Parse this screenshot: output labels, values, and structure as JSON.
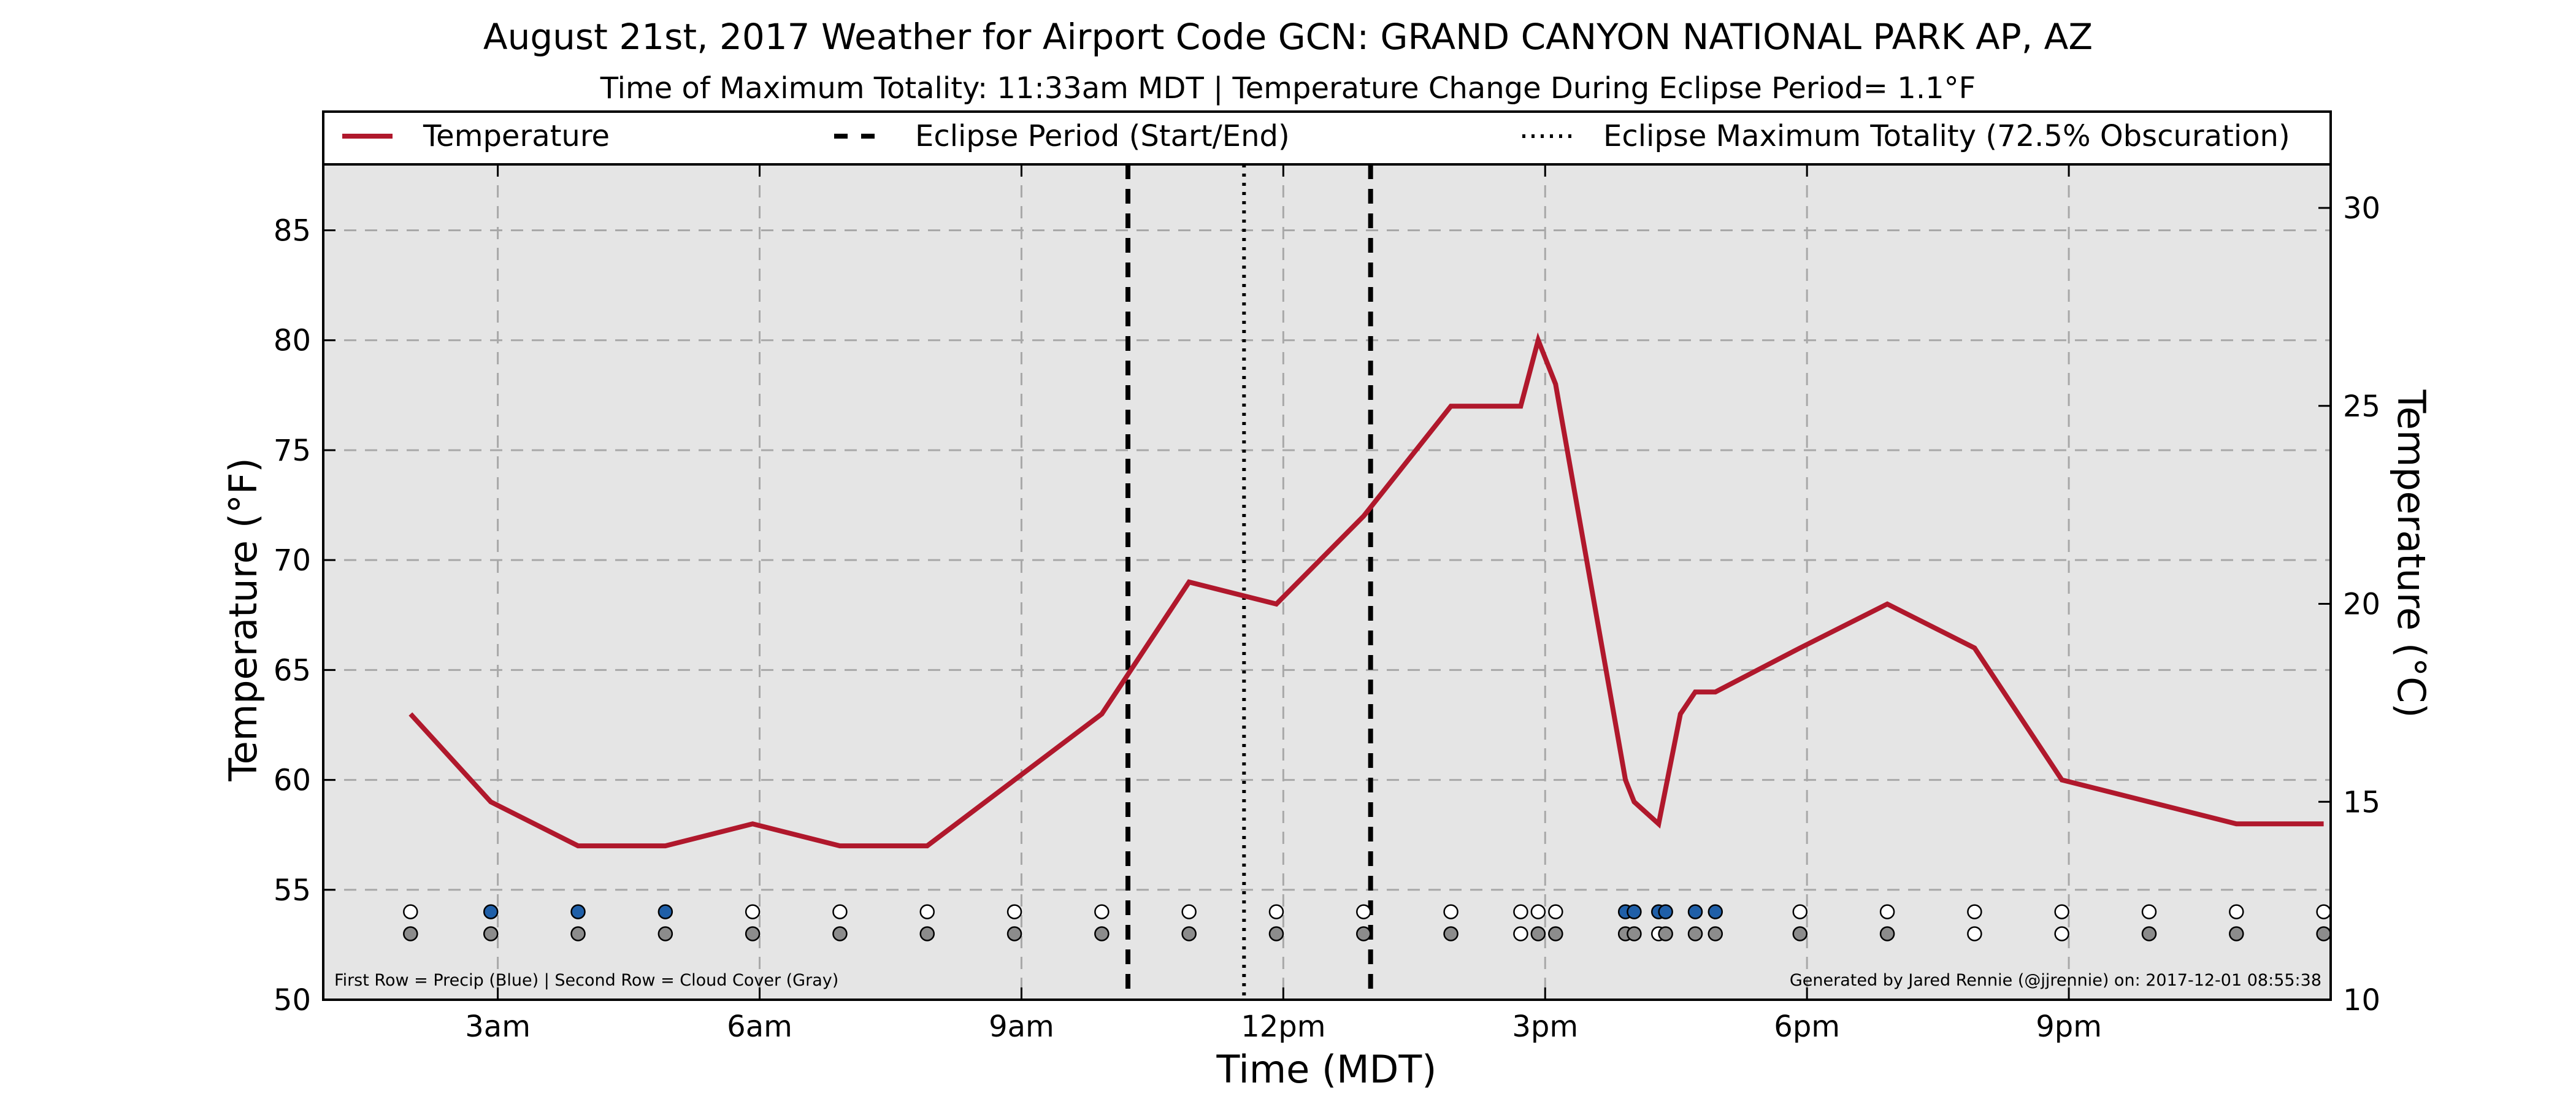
{
  "chart_data": {
    "type": "line",
    "title": "August 21st, 2017 Weather for Airport Code GCN: GRAND CANYON NATIONAL PARK AP, AZ",
    "subtitle": "Time of Maximum Totality: 11:33am MDT | Temperature Change During Eclipse Period= 1.1°F",
    "xlabel": "Time (MDT)",
    "ylabel": "Temperature (°F)",
    "ylabel_right": "Temperature (°C)",
    "xlim": [
      1.0,
      24.0
    ],
    "ylim": [
      50,
      88
    ],
    "ylim_right_c": [
      10,
      31.1
    ],
    "x_ticks": [
      {
        "x": 3,
        "label": "3am"
      },
      {
        "x": 6,
        "label": "6am"
      },
      {
        "x": 9,
        "label": "9am"
      },
      {
        "x": 12,
        "label": "12pm"
      },
      {
        "x": 15,
        "label": "3pm"
      },
      {
        "x": 18,
        "label": "6pm"
      },
      {
        "x": 21,
        "label": "9pm"
      }
    ],
    "y_ticks": [
      50,
      55,
      60,
      65,
      70,
      75,
      80,
      85
    ],
    "y_ticks_right": [
      10,
      15,
      20,
      25,
      30
    ],
    "grid": true,
    "legend": {
      "placement": "top",
      "entries": [
        {
          "label": "Temperature",
          "style": "solid",
          "color": "#b0182c"
        },
        {
          "label": "Eclipse Period (Start/End)",
          "style": "dashed",
          "color": "#000000"
        },
        {
          "label": "Eclipse Maximum Totality (72.5% Obscuration)",
          "style": "dotted",
          "color": "#000000"
        }
      ]
    },
    "series": [
      {
        "name": "Temperature",
        "color": "#b0182c",
        "x": [
          2.0,
          2.92,
          3.92,
          4.92,
          5.92,
          6.92,
          7.92,
          8.92,
          9.92,
          10.92,
          11.92,
          12.92,
          13.92,
          14.72,
          14.92,
          15.12,
          15.92,
          16.02,
          16.3,
          16.55,
          16.72,
          16.95,
          17.92,
          18.92,
          19.92,
          20.92,
          21.92,
          22.92,
          23.92
        ],
        "y": [
          63,
          59,
          57,
          57,
          58,
          57,
          57,
          60,
          63,
          69,
          68,
          72,
          77,
          77,
          80,
          78,
          60,
          59,
          58,
          63,
          64,
          64,
          66,
          68,
          66,
          60,
          59,
          58,
          58
        ]
      }
    ],
    "eclipse_lines": [
      {
        "x": 10.22,
        "type": "start",
        "style": "dashed"
      },
      {
        "x": 11.55,
        "type": "max",
        "style": "dotted"
      },
      {
        "x": 13.0,
        "type": "end",
        "style": "dashed"
      }
    ],
    "observation_rows": {
      "precip_row_y": 54,
      "cloud_row_y": 53,
      "precip_color": "#1f5fa8",
      "cloud_color": "#8c8c8c",
      "empty_color": "#ffffff",
      "points": [
        {
          "x": 2.0,
          "precip": false,
          "cloud": true
        },
        {
          "x": 2.92,
          "precip": true,
          "cloud": true
        },
        {
          "x": 3.92,
          "precip": true,
          "cloud": true
        },
        {
          "x": 4.92,
          "precip": true,
          "cloud": true
        },
        {
          "x": 5.92,
          "precip": false,
          "cloud": true
        },
        {
          "x": 6.92,
          "precip": false,
          "cloud": true
        },
        {
          "x": 7.92,
          "precip": false,
          "cloud": true
        },
        {
          "x": 8.92,
          "precip": false,
          "cloud": true
        },
        {
          "x": 9.92,
          "precip": false,
          "cloud": true
        },
        {
          "x": 10.92,
          "precip": false,
          "cloud": true
        },
        {
          "x": 11.92,
          "precip": false,
          "cloud": true
        },
        {
          "x": 12.92,
          "precip": false,
          "cloud": true
        },
        {
          "x": 13.92,
          "precip": false,
          "cloud": true
        },
        {
          "x": 14.72,
          "precip": false,
          "cloud": false
        },
        {
          "x": 14.92,
          "precip": false,
          "cloud": true
        },
        {
          "x": 15.12,
          "precip": false,
          "cloud": true
        },
        {
          "x": 15.92,
          "precip": true,
          "cloud": true
        },
        {
          "x": 16.02,
          "precip": true,
          "cloud": true
        },
        {
          "x": 16.3,
          "precip": true,
          "cloud": false
        },
        {
          "x": 16.38,
          "precip": true,
          "cloud": true
        },
        {
          "x": 16.72,
          "precip": true,
          "cloud": true
        },
        {
          "x": 16.95,
          "precip": true,
          "cloud": true
        },
        {
          "x": 17.92,
          "precip": false,
          "cloud": true
        },
        {
          "x": 18.92,
          "precip": false,
          "cloud": true
        },
        {
          "x": 19.92,
          "precip": false,
          "cloud": false
        },
        {
          "x": 20.92,
          "precip": false,
          "cloud": false
        },
        {
          "x": 21.92,
          "precip": false,
          "cloud": true
        },
        {
          "x": 22.92,
          "precip": false,
          "cloud": true
        },
        {
          "x": 23.92,
          "precip": false,
          "cloud": true
        }
      ]
    },
    "notes": {
      "left": "First Row = Precip (Blue) | Second Row = Cloud Cover (Gray)",
      "right": "Generated by Jared Rennie (@jjrennie) on: 2017-12-01 08:55:38"
    }
  }
}
